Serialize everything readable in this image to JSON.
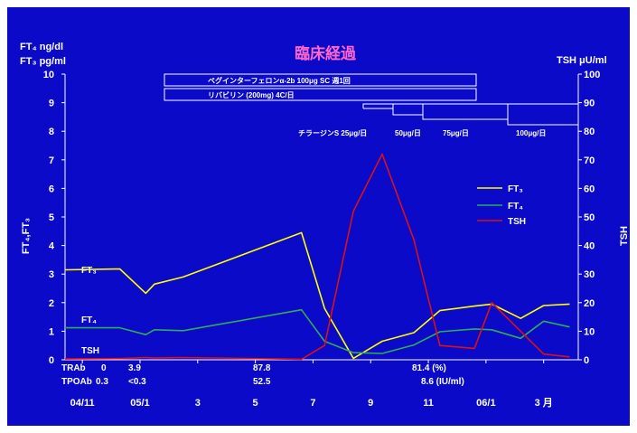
{
  "title": "臨床経過",
  "left_unit_line1": "FT₄ ng/dl",
  "left_unit_line2": "FT₃ pg/ml",
  "right_unit": "TSH μU/ml",
  "colors": {
    "background": "#0a0ac8",
    "FT3": "#ffff00",
    "FT4": "#33aa55",
    "TSH": "#dd1111",
    "title": "#ff66cc"
  },
  "treatments": {
    "bar1": "ペグインターフェロンα-2b 100μg SC 週1回",
    "bar2": "リバビリン (200mg) 4C/日",
    "dose_labels": [
      "チラージンS 25μg/日",
      "50μg/日",
      "75μg/日",
      "100μg/日"
    ]
  },
  "antibodies": {
    "trab_label": "TRAb",
    "trab_values": [
      "0",
      "3.9",
      "87.8",
      "81.4 (%)"
    ],
    "tpoab_label": "TPOAb",
    "tpoab_values": [
      "0.3",
      "<0.3",
      "52.5",
      "8.6 (IU/ml)"
    ]
  },
  "series_labels": {
    "FT3": "FT₃",
    "FT4": "FT₄",
    "TSH": "TSH"
  },
  "chart_data": {
    "type": "line",
    "x_tick_labels": [
      "04/11",
      "05/1",
      "3",
      "5",
      "7",
      "9",
      "11",
      "06/1",
      "3 月"
    ],
    "x_tick_positions": [
      0,
      2,
      4,
      6,
      8,
      10,
      12,
      14,
      16
    ],
    "xlim": [
      -0.6,
      17.2
    ],
    "ylim_left": [
      0,
      10
    ],
    "ylim_right": [
      0,
      100
    ],
    "left_tick_labels": [
      "0",
      "1",
      "2",
      "3",
      "4",
      "5",
      "6",
      "7",
      "8",
      "9",
      "10"
    ],
    "right_tick_labels": [
      "0",
      "10",
      "20",
      "30",
      "40",
      "50",
      "60",
      "70",
      "80",
      "90",
      "100"
    ],
    "ylabel_left": "FT₄,FT₃",
    "ylabel_right": "TSH",
    "legend": "right",
    "grid": false,
    "series": [
      {
        "name": "FT₃",
        "axis": "left",
        "x": [
          -0.6,
          1.3,
          2.2,
          2.5,
          3.5,
          7.6,
          8.4,
          9.4,
          10.4,
          11.5,
          12.4,
          13.6,
          14.2,
          15.2,
          16.0,
          16.9
        ],
        "values": [
          3.15,
          3.18,
          2.33,
          2.65,
          2.9,
          4.45,
          1.8,
          0.05,
          0.65,
          0.95,
          1.72,
          1.88,
          1.95,
          1.45,
          1.9,
          1.95
        ]
      },
      {
        "name": "FT₄",
        "axis": "left",
        "x": [
          -0.6,
          1.3,
          2.2,
          2.5,
          3.5,
          7.6,
          8.4,
          9.4,
          10.4,
          11.5,
          12.4,
          13.6,
          14.2,
          15.2,
          16.0,
          16.9
        ],
        "values": [
          1.12,
          1.12,
          0.88,
          1.05,
          1.02,
          1.75,
          0.65,
          0.25,
          0.22,
          0.52,
          0.98,
          1.08,
          1.05,
          0.75,
          1.35,
          1.15
        ]
      },
      {
        "name": "TSH",
        "axis": "right",
        "x": [
          -0.6,
          1.3,
          2.2,
          2.5,
          3.5,
          7.6,
          8.4,
          9.4,
          10.4,
          11.5,
          12.4,
          13.6,
          14.2,
          15.2,
          16.0,
          16.9
        ],
        "values": [
          0.3,
          0.4,
          0.8,
          0.6,
          0.8,
          0.2,
          5.0,
          52.0,
          72.0,
          42.0,
          5.0,
          4.0,
          20.0,
          10.0,
          2.0,
          1.0
        ]
      }
    ]
  }
}
